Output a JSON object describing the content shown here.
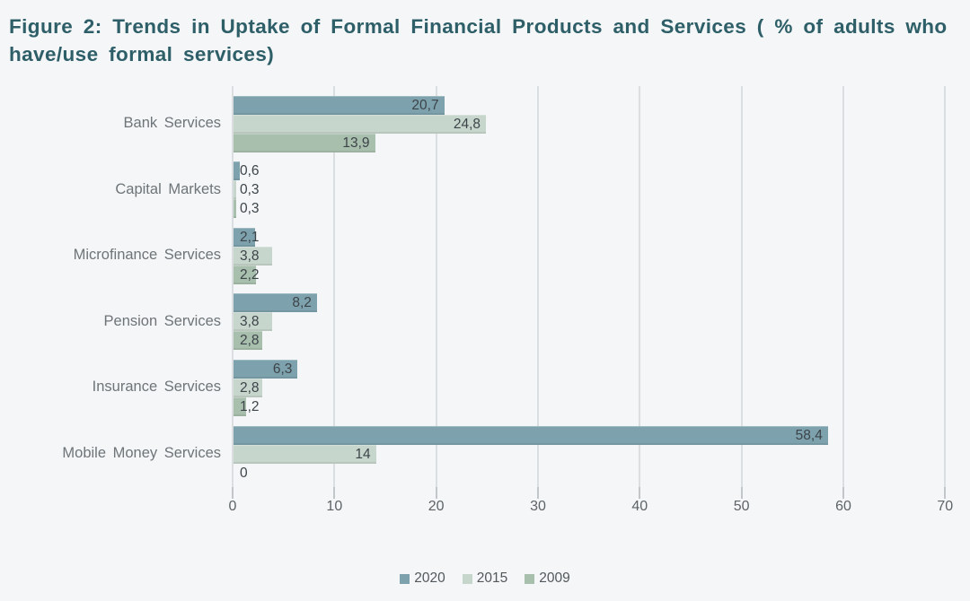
{
  "title": {
    "text": "Figure 2: Trends in Uptake of Formal Financial Products and Services ( % of adults who have/use formal services)"
  },
  "colors": {
    "title": "#2e5f68",
    "background": "#f4f6f7",
    "gridline": "#dbdee0",
    "series_2020": "#7da2ad",
    "series_2015": "#c6d6cd",
    "series_2009": "#a9bfae",
    "value_label": "#3d4449",
    "category_label": "#6e7478"
  },
  "chart_data": {
    "type": "bar",
    "orientation": "horizontal",
    "title": "Figure 2: Trends in Uptake of Formal Financial Products and Services ( % of adults who have/use formal services)",
    "categories": [
      "Bank Services",
      "Capital Markets",
      "Microfinance Services",
      "Pension Services",
      "Insurance Services",
      "Mobile Money Services"
    ],
    "series": [
      {
        "name": "2020",
        "color": "#7da2ad",
        "values": [
          20.7,
          0.6,
          2.1,
          8.2,
          6.3,
          58.4
        ],
        "labels": [
          "20,7",
          "0,6",
          "2,1",
          "8,2",
          "6,3",
          "58,4"
        ]
      },
      {
        "name": "2015",
        "color": "#c6d6cd",
        "values": [
          24.8,
          0.3,
          3.8,
          3.8,
          2.8,
          14
        ],
        "labels": [
          "24,8",
          "0,3",
          "3,8",
          "3,8",
          "2,8",
          "14"
        ]
      },
      {
        "name": "2009",
        "color": "#a9bfae",
        "values": [
          13.9,
          0.3,
          2.2,
          2.8,
          1.2,
          0
        ],
        "labels": [
          "13,9",
          "0,3",
          "2,2",
          "2,8",
          "1,2",
          "0"
        ]
      }
    ],
    "x_axis": {
      "min": 0,
      "max": 70,
      "tick_interval": 10,
      "ticks": [
        0,
        10,
        20,
        30,
        40,
        50,
        60,
        70
      ]
    },
    "xlabel": "",
    "ylabel": "",
    "grid": true,
    "legend": [
      "2020",
      "2015",
      "2009"
    ],
    "legend_position": "bottom",
    "data_label_decimal_separator": ","
  }
}
